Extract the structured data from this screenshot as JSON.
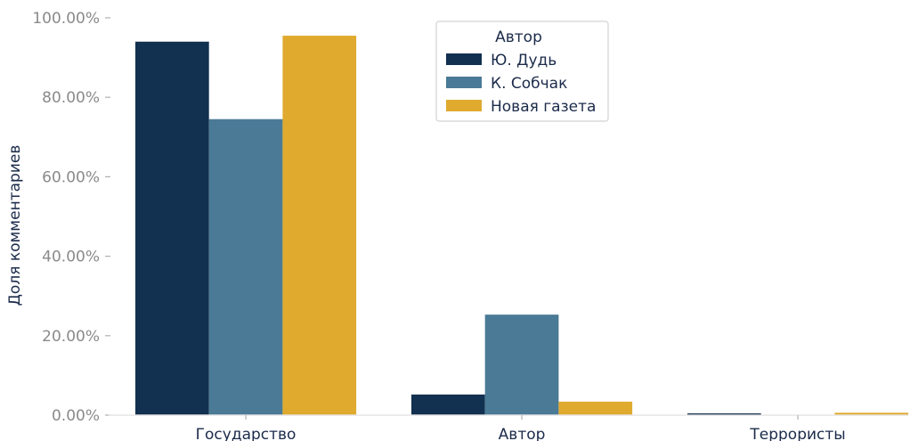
{
  "chart_data": {
    "type": "bar",
    "categories": [
      "Государство",
      "Автор",
      "Террористы"
    ],
    "series": [
      {
        "name": "Ю. Дудь",
        "color": "#12304f",
        "values": [
          94.0,
          5.2,
          0.3
        ]
      },
      {
        "name": "К. Собчак",
        "color": "#4a7a96",
        "values": [
          74.5,
          25.3,
          0.0
        ]
      },
      {
        "name": "Новая газета",
        "color": "#e0aa2e",
        "values": [
          95.5,
          3.4,
          0.6
        ]
      }
    ],
    "ylabel": "Доля комментариев",
    "xlabel": "",
    "ylim": [
      0,
      100
    ],
    "yticks": [
      "0.00%",
      "20.00%",
      "40.00%",
      "60.00%",
      "80.00%",
      "100.00%"
    ],
    "ytick_values": [
      0,
      20,
      40,
      60,
      80,
      100
    ],
    "legend": {
      "title": "Автор",
      "placement": "top-center"
    },
    "grid": false
  }
}
